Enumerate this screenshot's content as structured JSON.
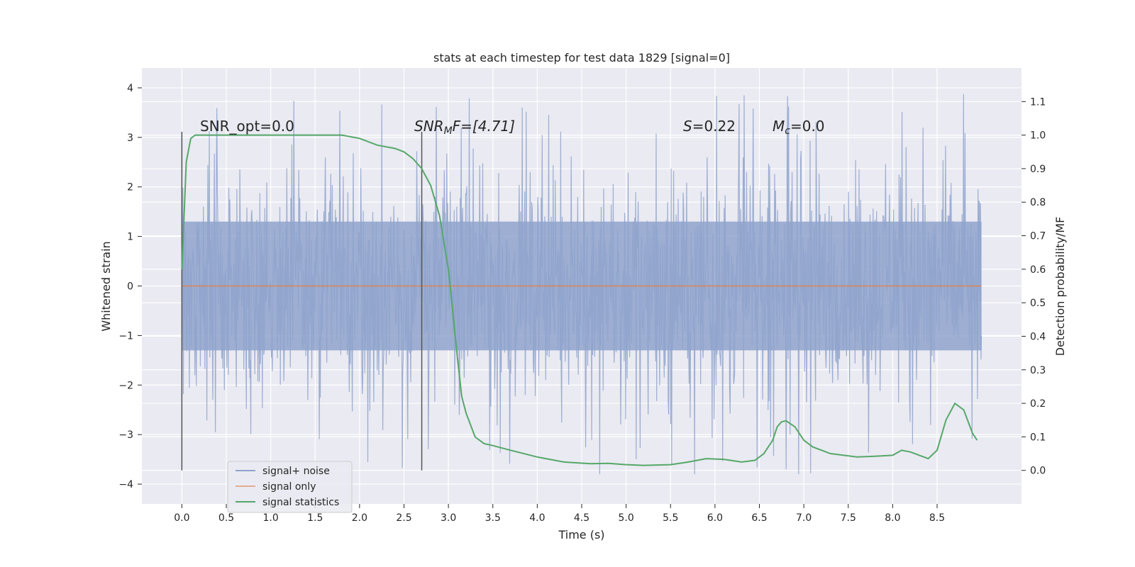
{
  "chart_data": {
    "type": "line",
    "title": "stats at each timestep for test data 1829 [signal=0]",
    "xlabel": "Time (s)",
    "ylabel": "Whitened strain",
    "y2label": "Detection probability/MF",
    "xlim": [
      -0.45,
      9.45
    ],
    "ylim": [
      -4.4,
      4.4
    ],
    "y2lim": [
      -0.1,
      1.2
    ],
    "x_ticks": [
      "0.0",
      "0.5",
      "1.0",
      "1.5",
      "2.0",
      "2.5",
      "3.0",
      "3.5",
      "4.0",
      "4.5",
      "5.0",
      "5.5",
      "6.0",
      "6.5",
      "7.0",
      "7.5",
      "8.0",
      "8.5"
    ],
    "y_ticks": [
      "4",
      "3",
      "2",
      "1",
      "0",
      "−1",
      "−2",
      "−3",
      "−4"
    ],
    "y2_ticks": [
      "1.1",
      "1.0",
      "0.9",
      "0.8",
      "0.7",
      "0.6",
      "0.5",
      "0.4",
      "0.3",
      "0.2",
      "0.1",
      "0.0"
    ],
    "grid": true,
    "legend_position": "lower-left",
    "annotations": {
      "snr_opt": "SNR_opt=0.0",
      "snr_mf_base": "SNR",
      "snr_mf_sub": "M",
      "snr_mf_tail": "F=[4.71]",
      "s_base": "S",
      "s_tail": "=0.22",
      "mc_base": "M",
      "mc_sub": "c",
      "mc_tail": "=0.0"
    },
    "vlines": [
      0.0,
      2.7
    ],
    "series": [
      {
        "name": "signal+ noise",
        "color": "#8fa3cc",
        "t_range": [
          0.0,
          9.0
        ],
        "amplitude_envelope": [
          -3.8,
          4.0
        ],
        "dense_band": [
          -1.3,
          1.3
        ]
      },
      {
        "name": "signal only",
        "color": "#dd8452",
        "x": [
          0.0,
          9.0
        ],
        "y": [
          0.0,
          0.0
        ]
      },
      {
        "name": "signal statistics",
        "color": "#55a868",
        "axis": "right",
        "x": [
          0.0,
          0.05,
          0.1,
          0.15,
          0.2,
          0.3,
          0.5,
          1.0,
          1.5,
          1.8,
          2.0,
          2.2,
          2.4,
          2.5,
          2.6,
          2.7,
          2.8,
          2.9,
          3.0,
          3.05,
          3.1,
          3.15,
          3.2,
          3.3,
          3.4,
          3.5,
          3.7,
          4.0,
          4.3,
          4.6,
          4.8,
          5.0,
          5.2,
          5.5,
          5.7,
          5.9,
          6.1,
          6.3,
          6.45,
          6.55,
          6.65,
          6.7,
          6.75,
          6.8,
          6.9,
          7.0,
          7.1,
          7.3,
          7.6,
          7.8,
          8.0,
          8.1,
          8.2,
          8.3,
          8.4,
          8.5,
          8.6,
          8.7,
          8.8,
          8.9,
          8.95
        ],
        "y": [
          0.6,
          0.92,
          0.99,
          1.0,
          1.0,
          1.0,
          1.0,
          1.0,
          1.0,
          1.0,
          0.99,
          0.97,
          0.96,
          0.95,
          0.93,
          0.9,
          0.85,
          0.76,
          0.6,
          0.47,
          0.34,
          0.22,
          0.17,
          0.1,
          0.08,
          0.074,
          0.06,
          0.04,
          0.025,
          0.02,
          0.021,
          0.017,
          0.015,
          0.017,
          0.025,
          0.035,
          0.033,
          0.025,
          0.03,
          0.05,
          0.09,
          0.13,
          0.145,
          0.148,
          0.13,
          0.09,
          0.07,
          0.05,
          0.04,
          0.042,
          0.045,
          0.06,
          0.055,
          0.045,
          0.035,
          0.06,
          0.15,
          0.2,
          0.18,
          0.11,
          0.09
        ]
      }
    ]
  }
}
